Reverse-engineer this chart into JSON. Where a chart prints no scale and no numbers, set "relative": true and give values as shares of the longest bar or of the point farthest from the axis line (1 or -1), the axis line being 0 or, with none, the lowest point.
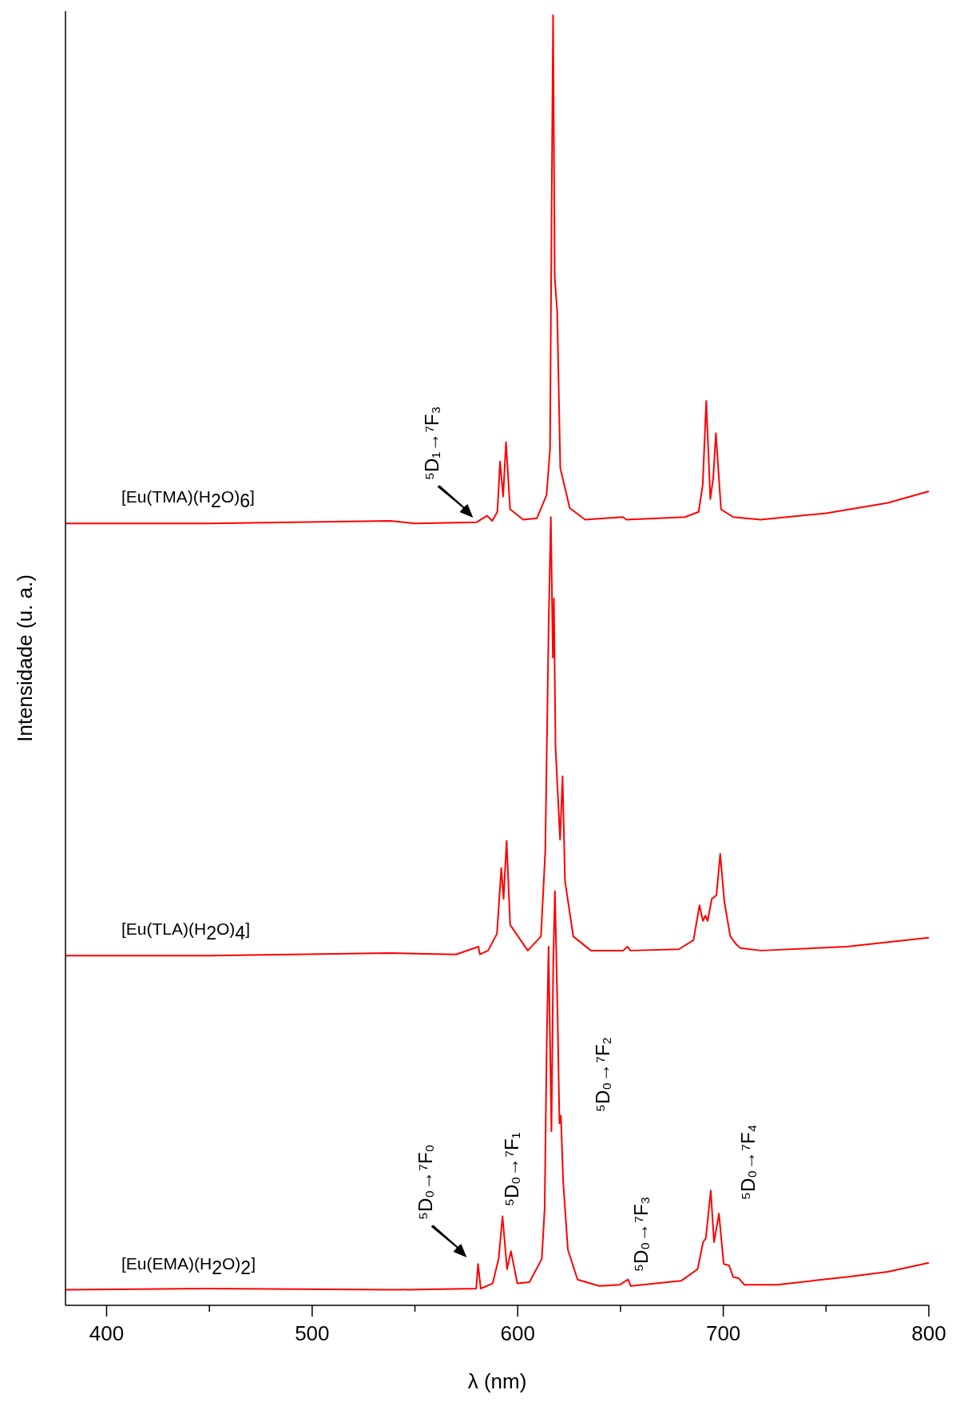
{
  "chart_data": {
    "type": "line",
    "relative": true,
    "xlabel": "λ (nm)",
    "ylabel": "Intensidade (u. a.)",
    "xlim": [
      380,
      800
    ],
    "xticks": [
      400,
      {
        "value": 450,
        "label": null
      },
      500,
      {
        "value": 550,
        "label": null
      },
      600,
      {
        "value": 650,
        "label": null
      },
      700,
      {
        "value": 750,
        "label": null
      },
      800
    ],
    "tick_labels": "x",
    "grid": false,
    "line_style": "solid",
    "series": [
      {
        "name": "[Eu(TMA)(H$_{2}$O)$_{6}$]",
        "color": "#ff0000",
        "x": [
          380,
          450,
          538,
          550,
          580,
          585.1,
          587.6,
          590.1,
          591.4,
          592.9,
          594.3,
          596.3,
          602.7,
          609.3,
          614.0,
          615.7,
          616.5,
          617.2,
          618.0,
          619.2,
          620.7,
          625.3,
          632.8,
          651.2,
          652.9,
          681.4,
          688.0,
          690.0,
          691.7,
          693.7,
          695.1,
          696.4,
          698.9,
          704.8,
          718.2,
          750,
          780,
          800
        ],
        "values": [
          0.606,
          0.606,
          0.608,
          0.606,
          0.607,
          0.612,
          0.608,
          0.615,
          0.654,
          0.627,
          0.669,
          0.617,
          0.609,
          0.61,
          0.628,
          0.663,
          0.851,
          1.0,
          0.797,
          0.77,
          0.649,
          0.618,
          0.609,
          0.611,
          0.609,
          0.611,
          0.615,
          0.636,
          0.701,
          0.625,
          0.641,
          0.676,
          0.617,
          0.611,
          0.609,
          0.614,
          0.622,
          0.631
        ]
      },
      {
        "name": "[Eu(TLA)(H$_{2}$O)$_{4}$]",
        "color": "#ff0000",
        "x": [
          380,
          450,
          538,
          570,
          580.9,
          581.6,
          585.6,
          589.9,
          592.0,
          593.1,
          594.6,
          596.3,
          604.9,
          611.3,
          613.4,
          615.0,
          616.1,
          617.1,
          617.6,
          618.4,
          620.6,
          621.8,
          623.0,
          627.0,
          635.6,
          651.3,
          653.4,
          654.8,
          678.4,
          685.5,
          688.4,
          690.1,
          691.3,
          692.4,
          694.4,
          696.7,
          698.5,
          700.5,
          703.4,
          706.2,
          708.3,
          718.4,
          760,
          800
        ],
        "values": [
          0.271,
          0.271,
          0.273,
          0.272,
          0.278,
          0.272,
          0.275,
          0.288,
          0.339,
          0.315,
          0.36,
          0.295,
          0.275,
          0.286,
          0.352,
          0.524,
          0.611,
          0.502,
          0.548,
          0.432,
          0.361,
          0.41,
          0.329,
          0.286,
          0.275,
          0.275,
          0.278,
          0.275,
          0.276,
          0.283,
          0.31,
          0.298,
          0.302,
          0.298,
          0.315,
          0.318,
          0.35,
          0.313,
          0.286,
          0.28,
          0.277,
          0.275,
          0.278,
          0.285
        ]
      },
      {
        "name": "[Eu(EMA)(H$_{2}$O)$_{2}$]",
        "color": "#ff0000",
        "x": [
          380,
          450,
          540,
          579.8,
          580.7,
          582.0,
          587.8,
          590.7,
          592.6,
          594.8,
          596.7,
          599.8,
          605.7,
          611.7,
          613.1,
          614.1,
          615.0,
          616.4,
          617.3,
          618.1,
          619.4,
          620.3,
          621.0,
          622.1,
          624.4,
          629.1,
          639.7,
          649.7,
          653.7,
          655.0,
          679.5,
          687.5,
          690.2,
          691.5,
          693.9,
          695.5,
          697.9,
          700.2,
          702.8,
          704.8,
          707.5,
          710.2,
          726.1,
          760,
          780,
          800
        ],
        "values": [
          0.012,
          0.013,
          0.012,
          0.013,
          0.032,
          0.013,
          0.017,
          0.036,
          0.069,
          0.028,
          0.042,
          0.017,
          0.018,
          0.036,
          0.075,
          0.203,
          0.278,
          0.135,
          0.267,
          0.321,
          0.224,
          0.141,
          0.147,
          0.096,
          0.043,
          0.02,
          0.015,
          0.016,
          0.02,
          0.015,
          0.019,
          0.028,
          0.049,
          0.052,
          0.089,
          0.049,
          0.071,
          0.032,
          0.031,
          0.022,
          0.021,
          0.016,
          0.016,
          0.022,
          0.026,
          0.033
        ]
      }
    ],
    "annotations": [
      "⁵D₁→⁷F₃",
      "⁵D₀→⁷F₀",
      "⁵D₀→⁷F₁",
      "⁵D₀→⁷F₂",
      "⁵D₀→⁷F₃",
      "⁵D₀→⁷F₄"
    ]
  }
}
